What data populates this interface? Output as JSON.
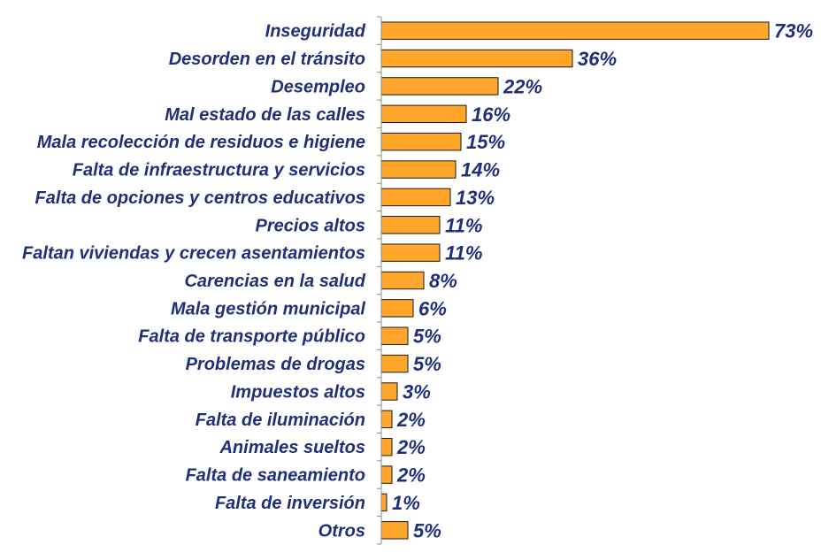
{
  "chart_data": {
    "type": "bar",
    "orientation": "horizontal",
    "categories": [
      "Inseguridad",
      "Desorden en el tránsito",
      "Desempleo",
      "Mal estado de las calles",
      "Mala recolección de residuos e higiene",
      "Falta de infraestructura y servicios",
      "Falta de opciones y centros educativos",
      "Precios altos",
      "Faltan viviendas y crecen asentamientos",
      "Carencias en la salud",
      "Mala gestión municipal",
      "Falta de transporte público",
      "Problemas de drogas",
      "Impuestos altos",
      "Falta de iluminación",
      "Animales sueltos",
      "Falta de saneamiento",
      "Falta de inversión",
      "Otros"
    ],
    "values": [
      73,
      36,
      22,
      16,
      15,
      14,
      13,
      11,
      11,
      8,
      6,
      5,
      5,
      3,
      2,
      2,
      2,
      1,
      5
    ],
    "value_labels": [
      "73%",
      "36%",
      "22%",
      "16%",
      "15%",
      "14%",
      "13%",
      "11%",
      "11%",
      "8%",
      "6%",
      "5%",
      "5%",
      "3%",
      "2%",
      "2%",
      "2%",
      "1%",
      "5%"
    ],
    "xlim": [
      0,
      73
    ],
    "grid": false,
    "bar_color": "#ffa62b",
    "bar_edge_color": "#1a1a1a",
    "text_color": "#1f2f7a",
    "axis_color": "#8c8c8c"
  }
}
